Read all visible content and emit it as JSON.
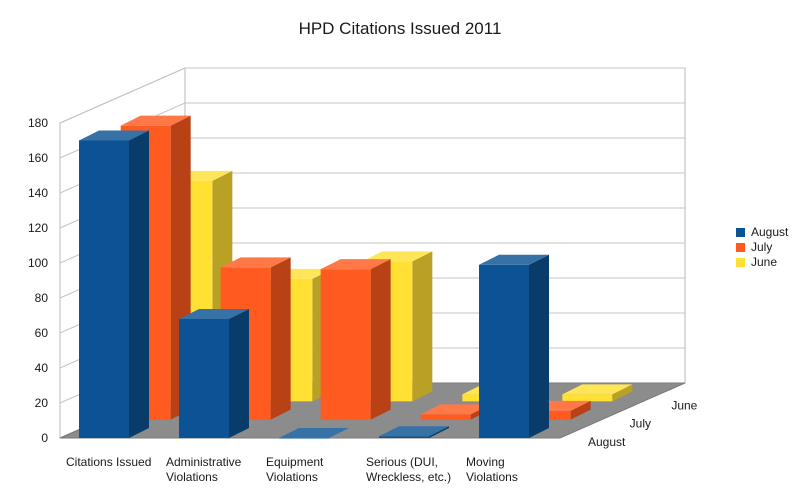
{
  "chart_data": {
    "type": "bar",
    "title": "HPD Citations Issued 2011",
    "xlabel": "",
    "ylabel": "",
    "ylim": [
      0,
      180
    ],
    "y_ticks": [
      "0",
      "20",
      "40",
      "60",
      "80",
      "100",
      "120",
      "140",
      "160",
      "180"
    ],
    "categories": [
      [
        "Citations Issued"
      ],
      [
        "Administrative",
        "Violations"
      ],
      [
        "Equipment",
        "Violations"
      ],
      [
        "Serious (DUI,",
        "Wreckless, etc.)"
      ],
      [
        "Moving",
        "Violations"
      ]
    ],
    "depth_labels": [
      "August",
      "July",
      "June"
    ],
    "series": [
      {
        "name": "August",
        "color": "#0b5394",
        "values": [
          170,
          68,
          0,
          1,
          99
        ]
      },
      {
        "name": "July",
        "color": "#ff5a1f",
        "values": [
          168,
          87,
          86,
          3,
          5
        ]
      },
      {
        "name": "June",
        "color": "#ffe033",
        "values": [
          126,
          70,
          80,
          4,
          4
        ]
      }
    ],
    "legend": {
      "position": "right"
    },
    "grid": true,
    "style": "3d-rows"
  }
}
